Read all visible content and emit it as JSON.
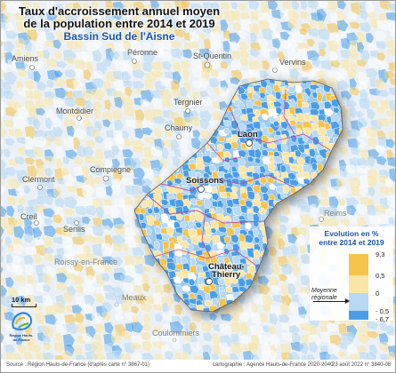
{
  "title": {
    "line1": "Taux d'accroissement annuel moyen",
    "line2": "de la population entre 2014 et 2019",
    "subtitle": "Bassin Sud de l'Aisne"
  },
  "places": {
    "main": [
      {
        "name": "Laon"
      },
      {
        "name": "Soissons"
      },
      {
        "name": "Château-"
      },
      {
        "name": "Thierry"
      }
    ],
    "faded": [
      {
        "name": "Amiens"
      },
      {
        "name": "Péronne"
      },
      {
        "name": "St-Quentin"
      },
      {
        "name": "Vervins"
      },
      {
        "name": "Montdidier"
      },
      {
        "name": "Tergnier"
      },
      {
        "name": "Chauny"
      },
      {
        "name": "Clermont"
      },
      {
        "name": "Compiegne"
      },
      {
        "name": "Creil"
      },
      {
        "name": "Senlis"
      }
    ],
    "outside": [
      {
        "name": "Reims"
      },
      {
        "name": "Roissy-en-France"
      },
      {
        "name": "Meaux"
      },
      {
        "name": "Coulommiers"
      }
    ]
  },
  "legend": {
    "title_line1": "Evolution en %",
    "title_line2": "entre 2014 et 2019",
    "labels": [
      "9,3",
      "0,5",
      "0",
      "- 0,5",
      "- 6,7"
    ],
    "note_line1": "Moyenne",
    "note_line2": "régionale",
    "colors": {
      "strong_growth": "#f5c44c",
      "growth": "#fbe6a6",
      "decline": "#b7d9f3",
      "strong_decline": "#4a9de6"
    }
  },
  "scale": {
    "label": "10 km"
  },
  "logo": {
    "text": "Région Hauts-de-France"
  },
  "footer": {
    "source": "Source : Région Hauts-de-France (d'après carte n° 3867-01)",
    "credit": "cartographie : Agence Hauts-de-France 2020-2040",
    "date": "23 août 2022 n° 3840-08"
  }
}
